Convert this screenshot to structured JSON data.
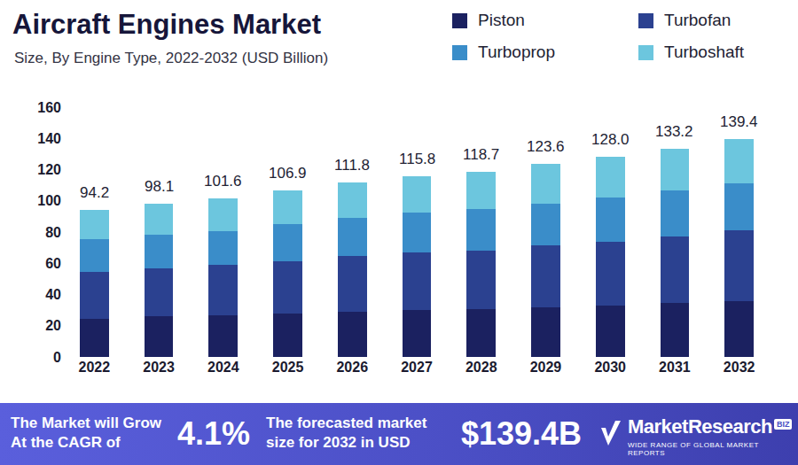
{
  "chart_data": {
    "type": "bar",
    "title": "Aircraft Engines Market",
    "subtitle": "Size, By Engine Type, 2022-2032 (USD Billion)",
    "categories": [
      "2022",
      "2023",
      "2024",
      "2025",
      "2026",
      "2027",
      "2028",
      "2029",
      "2030",
      "2031",
      "2032"
    ],
    "series": [
      {
        "name": "Piston",
        "color": "#1b2160",
        "values": [
          24.4,
          26.0,
          26.7,
          27.8,
          28.9,
          30.1,
          30.6,
          31.8,
          32.9,
          34.6,
          35.7
        ]
      },
      {
        "name": "Turbofan",
        "color": "#2b4190",
        "values": [
          30.1,
          30.7,
          32.3,
          33.5,
          35.8,
          36.9,
          37.5,
          39.7,
          40.9,
          42.6,
          45.4
        ]
      },
      {
        "name": "Turboprop",
        "color": "#3a8dc9",
        "values": [
          21.0,
          21.6,
          21.6,
          23.8,
          24.4,
          25.5,
          26.7,
          26.7,
          28.3,
          29.5,
          30.1
        ]
      },
      {
        "name": "Turboshaft",
        "color": "#6cc6de",
        "values": [
          18.7,
          19.8,
          21.0,
          21.8,
          22.7,
          23.3,
          23.9,
          25.4,
          25.9,
          26.5,
          28.2
        ]
      }
    ],
    "totals": [
      94.2,
      98.1,
      101.6,
      106.9,
      111.8,
      115.8,
      118.7,
      123.6,
      128.0,
      133.2,
      139.4
    ],
    "total_labels": [
      "94.2",
      "98.1",
      "101.6",
      "106.9",
      "111.8",
      "115.8",
      "118.7",
      "123.6",
      "128.0",
      "133.2",
      "139.4"
    ],
    "ylim": [
      0,
      160
    ],
    "yticks": [
      0,
      20,
      40,
      60,
      80,
      100,
      120,
      140,
      160
    ],
    "grid": false,
    "stacked": true,
    "legend": "top right"
  },
  "footer": {
    "cagr_text": [
      "The Market will Grow",
      "At the CAGR of"
    ],
    "cagr_value": "4.1%",
    "forecast_text": [
      "The forecasted market",
      "size for 2032 in USD"
    ],
    "forecast_value": "$139.4B",
    "brand": "MarketResearch",
    "brand_badge": "BIZ",
    "tagline": "WIDE RANGE OF GLOBAL MARKET REPORTS"
  }
}
